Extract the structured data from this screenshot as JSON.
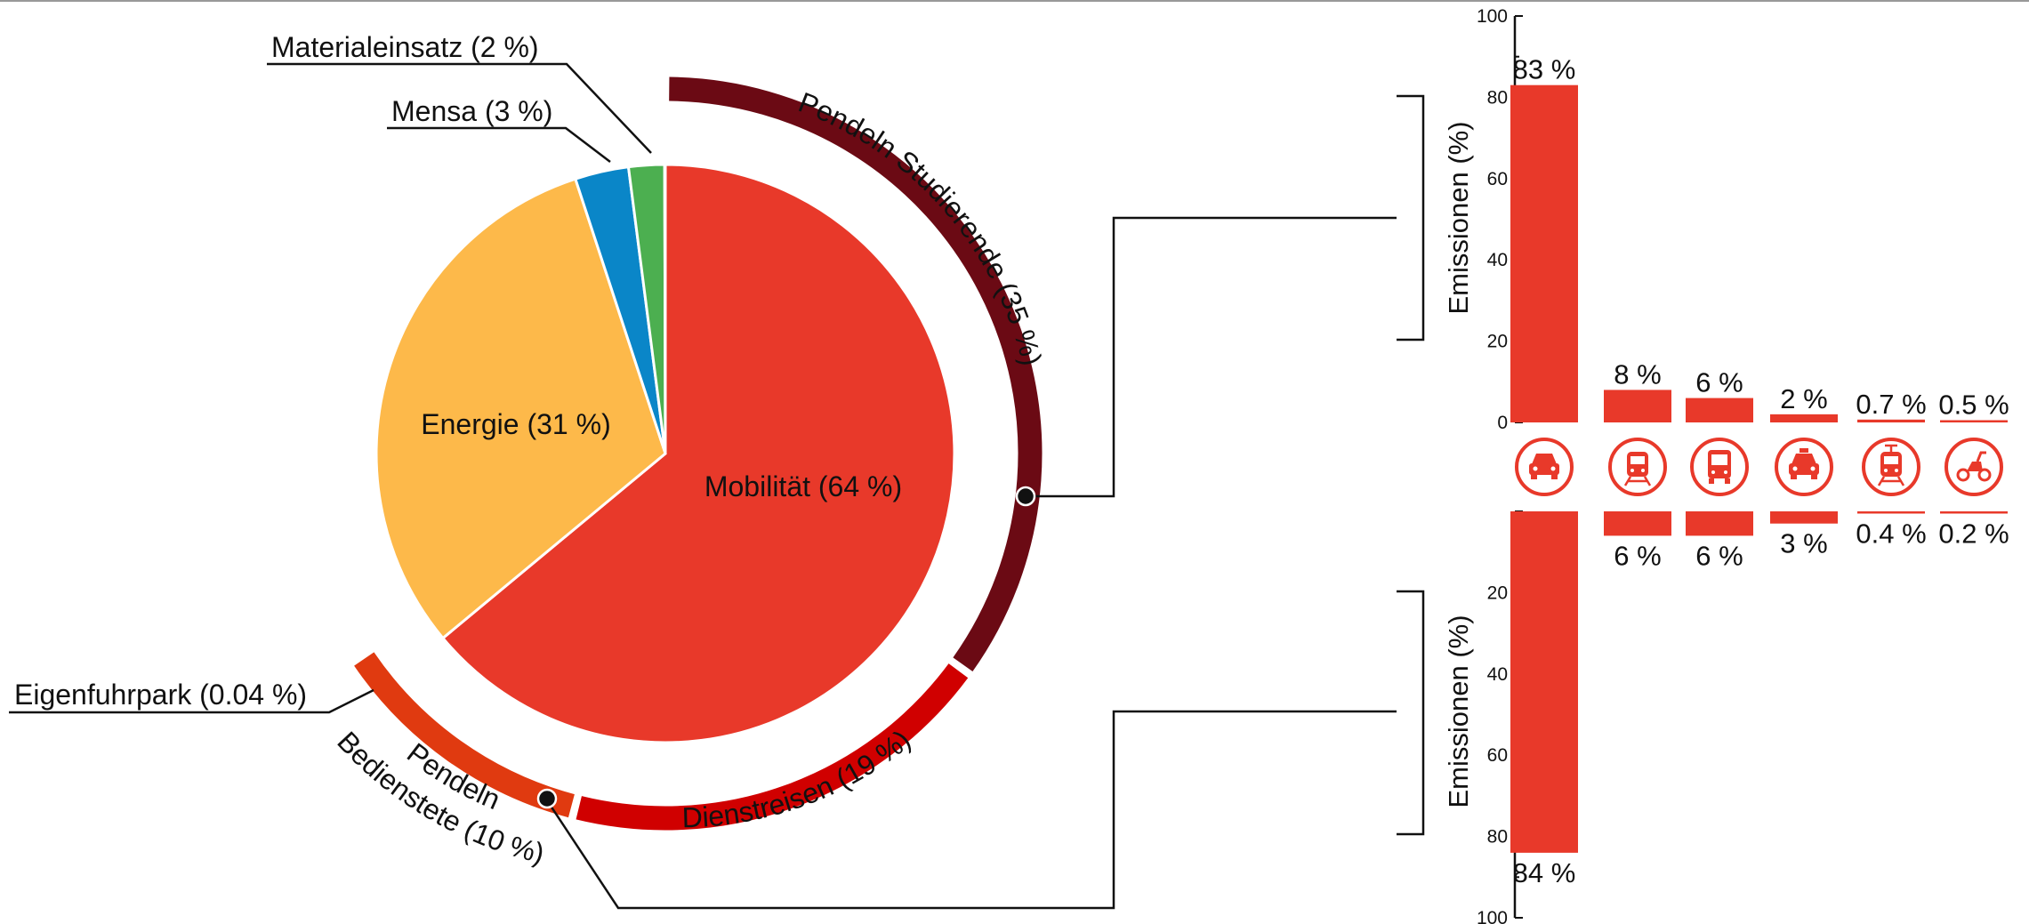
{
  "chart_data": [
    {
      "type": "pie",
      "slices": [
        {
          "label": "Mobilität (64 %)",
          "value": 64,
          "color": "#e8392a"
        },
        {
          "label": "Energie (31 %)",
          "value": 31,
          "color": "#fdb94a"
        },
        {
          "label": "Mensa (3 %)",
          "value": 3,
          "color": "#0a86c8"
        },
        {
          "label": "Materialeinsatz (2 %)",
          "value": 2,
          "color": "#4caf50"
        },
        {
          "label": "Eigenfuhrpark (0.04 %)",
          "value": 0.04,
          "color": "#e8392a"
        }
      ],
      "outer_ring": [
        {
          "label": "Pendeln Studierende (35 %)",
          "value": 35,
          "color": "#6b0a14"
        },
        {
          "label": "Dienstreisen (19 %)",
          "value": 19,
          "color": "#d00000"
        },
        {
          "label_line1": "Pendeln",
          "label_line2": "Bedienstete (10 %)",
          "value": 10,
          "color": "#e03a10"
        }
      ]
    },
    {
      "type": "bar",
      "ylabel": "Emissionen (%)",
      "ylim": [
        0,
        100
      ],
      "yticks": [
        "0",
        "20",
        "40",
        "60",
        "80",
        "100"
      ],
      "color": "#e8392a",
      "categories": [
        "car-icon",
        "train-icon",
        "bus-icon",
        "taxi-icon",
        "tram-icon",
        "motorbike-icon"
      ],
      "values": [
        83,
        8,
        6,
        2,
        0.7,
        0.5
      ],
      "value_labels": [
        "83 %",
        "8 %",
        "6 %",
        "2 %",
        "0.7 %",
        "0.5 %"
      ]
    },
    {
      "type": "bar",
      "ylabel": "Emissionen (%)",
      "ylim": [
        0,
        100
      ],
      "yticks": [
        "20",
        "40",
        "60",
        "80",
        "100"
      ],
      "color": "#e8392a",
      "categories": [
        "car-icon",
        "train-icon",
        "bus-icon",
        "taxi-icon",
        "tram-icon",
        "motorbike-icon"
      ],
      "values": [
        84,
        6,
        6,
        3,
        0.4,
        0.2
      ],
      "value_labels": [
        "84 %",
        "6 %",
        "6 %",
        "3 %",
        "0.4 %",
        "0.2 %"
      ]
    }
  ]
}
